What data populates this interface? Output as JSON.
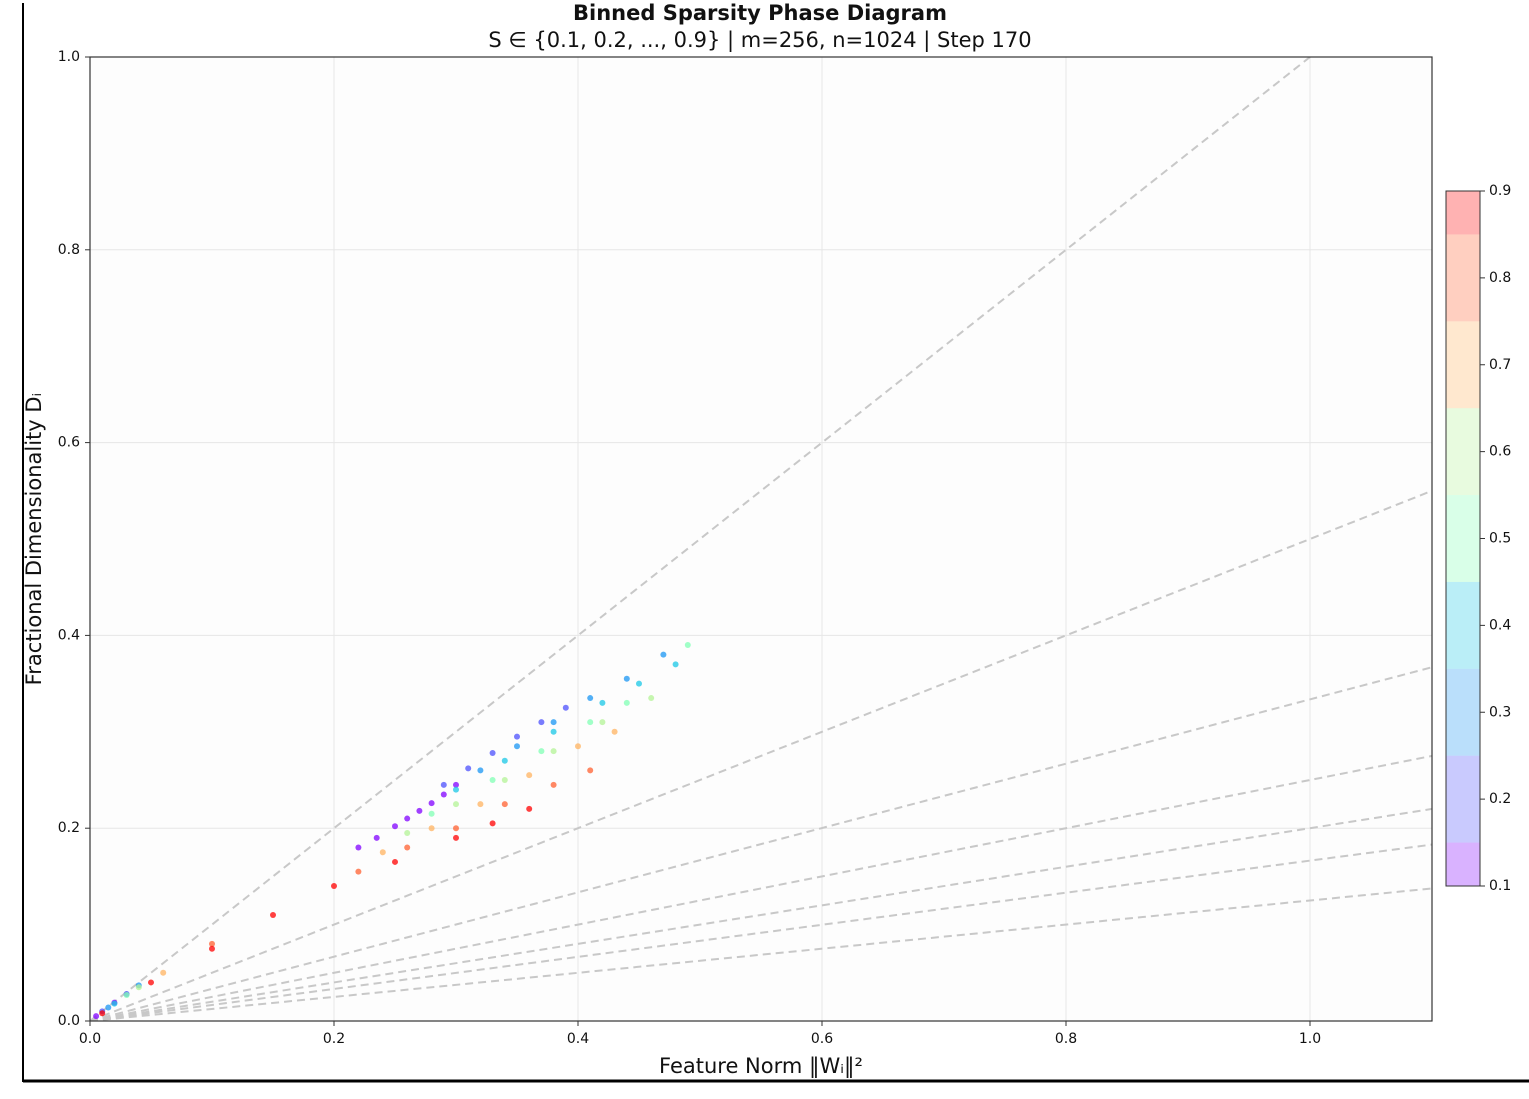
{
  "chart_data": {
    "type": "scatter",
    "title": "Binned Sparsity Phase Diagram",
    "subtitle": "S ∈ {0.1, 0.2, ..., 0.9} | m=256, n=1024 | Step 170",
    "x_label": "Feature Norm ‖Wᵢ‖²",
    "y_label": "Fractional Dimensionality Dᵢ",
    "xlim": [
      0,
      1.1
    ],
    "ylim": [
      0,
      1
    ],
    "xticks": [
      {
        "value": 0,
        "label": "0.0"
      },
      0.2,
      0.4,
      0.6,
      0.8,
      {
        "value": 1,
        "label": "1.0"
      }
    ],
    "yticks": [
      {
        "value": 0,
        "label": "0.0"
      },
      0.2,
      0.4,
      0.6,
      0.8,
      {
        "value": 1,
        "label": "1.0"
      }
    ],
    "grid": true,
    "reference_lines": {
      "color": "#c8c8c8",
      "y_at_xmax": [
        1.1,
        0.55,
        0.367,
        0.275,
        0.22,
        0.183,
        0.1375
      ]
    },
    "colorbar": {
      "lim": [
        0.1,
        0.9
      ],
      "ticks": [
        0.1,
        0.2,
        0.3,
        0.4,
        0.5,
        0.6,
        0.7,
        0.8,
        0.9
      ]
    },
    "series": [
      {
        "sparsity": 0.1,
        "color": "#8000ff",
        "x": [
          0.005,
          0.02,
          0.22,
          0.235,
          0.25,
          0.26,
          0.27,
          0.28,
          0.29,
          0.3
        ],
        "values": [
          0.005,
          0.019,
          0.18,
          0.19,
          0.202,
          0.21,
          0.218,
          0.226,
          0.235,
          0.245
        ]
      },
      {
        "sparsity": 0.2,
        "color": "#4c50fc",
        "x": [
          0.01,
          0.03,
          0.29,
          0.31,
          0.33,
          0.35,
          0.37,
          0.39
        ],
        "values": [
          0.01,
          0.028,
          0.245,
          0.262,
          0.278,
          0.295,
          0.31,
          0.325
        ]
      },
      {
        "sparsity": 0.3,
        "color": "#1996f3",
        "x": [
          0.015,
          0.04,
          0.32,
          0.35,
          0.38,
          0.41,
          0.44,
          0.47
        ],
        "values": [
          0.014,
          0.037,
          0.26,
          0.285,
          0.31,
          0.335,
          0.355,
          0.38
        ]
      },
      {
        "sparsity": 0.4,
        "color": "#1ac7e6",
        "x": [
          0.02,
          0.3,
          0.34,
          0.38,
          0.42,
          0.45,
          0.48
        ],
        "values": [
          0.018,
          0.24,
          0.27,
          0.3,
          0.33,
          0.35,
          0.37
        ]
      },
      {
        "sparsity": 0.5,
        "color": "#80ffb4",
        "x": [
          0.03,
          0.28,
          0.33,
          0.37,
          0.41,
          0.44,
          0.49
        ],
        "values": [
          0.027,
          0.215,
          0.25,
          0.28,
          0.31,
          0.33,
          0.39
        ]
      },
      {
        "sparsity": 0.6,
        "color": "#b3f396",
        "x": [
          0.04,
          0.26,
          0.3,
          0.34,
          0.38,
          0.42,
          0.46
        ],
        "values": [
          0.035,
          0.195,
          0.225,
          0.25,
          0.28,
          0.31,
          0.335
        ]
      },
      {
        "sparsity": 0.7,
        "color": "#ffb360",
        "x": [
          0.06,
          0.24,
          0.28,
          0.32,
          0.36,
          0.4,
          0.43
        ],
        "values": [
          0.05,
          0.175,
          0.2,
          0.225,
          0.255,
          0.285,
          0.3
        ]
      },
      {
        "sparsity": 0.8,
        "color": "#ff6030",
        "x": [
          0.1,
          0.22,
          0.26,
          0.3,
          0.34,
          0.38,
          0.41
        ],
        "values": [
          0.08,
          0.155,
          0.18,
          0.2,
          0.225,
          0.245,
          0.26
        ]
      },
      {
        "sparsity": 0.9,
        "color": "#ff0000",
        "x": [
          0.01,
          0.05,
          0.1,
          0.15,
          0.2,
          0.25,
          0.3,
          0.33,
          0.36
        ],
        "values": [
          0.008,
          0.04,
          0.075,
          0.11,
          0.14,
          0.165,
          0.19,
          0.205,
          0.22
        ]
      }
    ]
  }
}
